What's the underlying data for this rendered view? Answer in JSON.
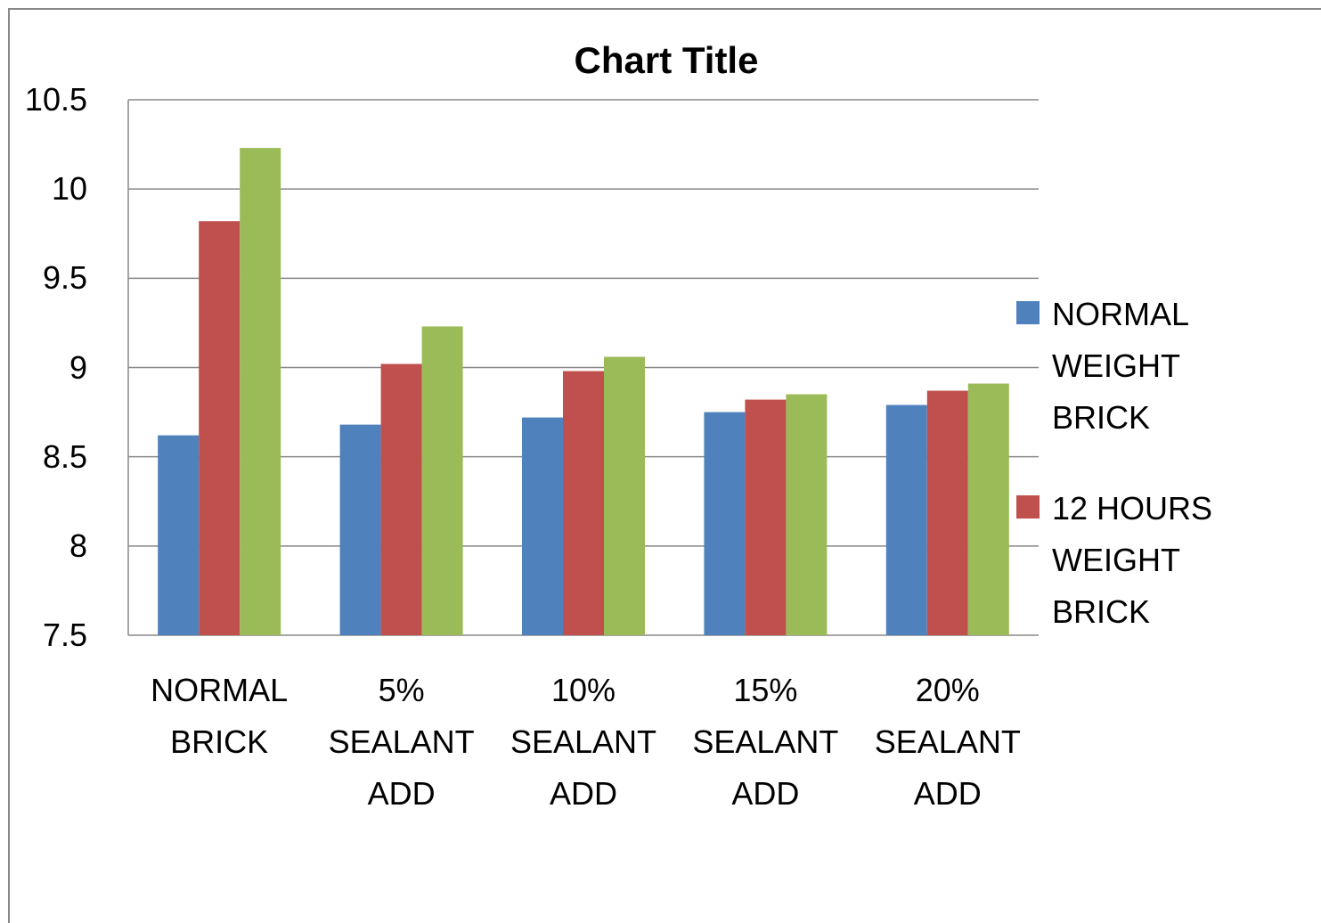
{
  "chart_data": {
    "type": "bar",
    "title": "Chart Title",
    "categories": [
      "NORMAL BRICK",
      "5% SEALANT ADD",
      "10% SEALANT ADD",
      "15% SEALANT ADD",
      "20% SEALANT ADD"
    ],
    "series": [
      {
        "name": "NORMAL WEIGHT BRICK",
        "color": "#4f81bd",
        "values": [
          8.62,
          8.68,
          8.72,
          8.75,
          8.79
        ]
      },
      {
        "name": "12 HOURS WEIGHT BRICK",
        "color": "#c0504d",
        "values": [
          9.82,
          9.02,
          8.98,
          8.82,
          8.87
        ]
      },
      {
        "color": "#9bbb59",
        "values": [
          10.23,
          9.23,
          9.06,
          8.85,
          8.91
        ]
      }
    ],
    "ylim": [
      7.5,
      10.5
    ],
    "yticks": [
      7.5,
      8,
      8.5,
      9,
      9.5,
      10,
      10.5
    ],
    "grid": true,
    "legend": "right"
  }
}
